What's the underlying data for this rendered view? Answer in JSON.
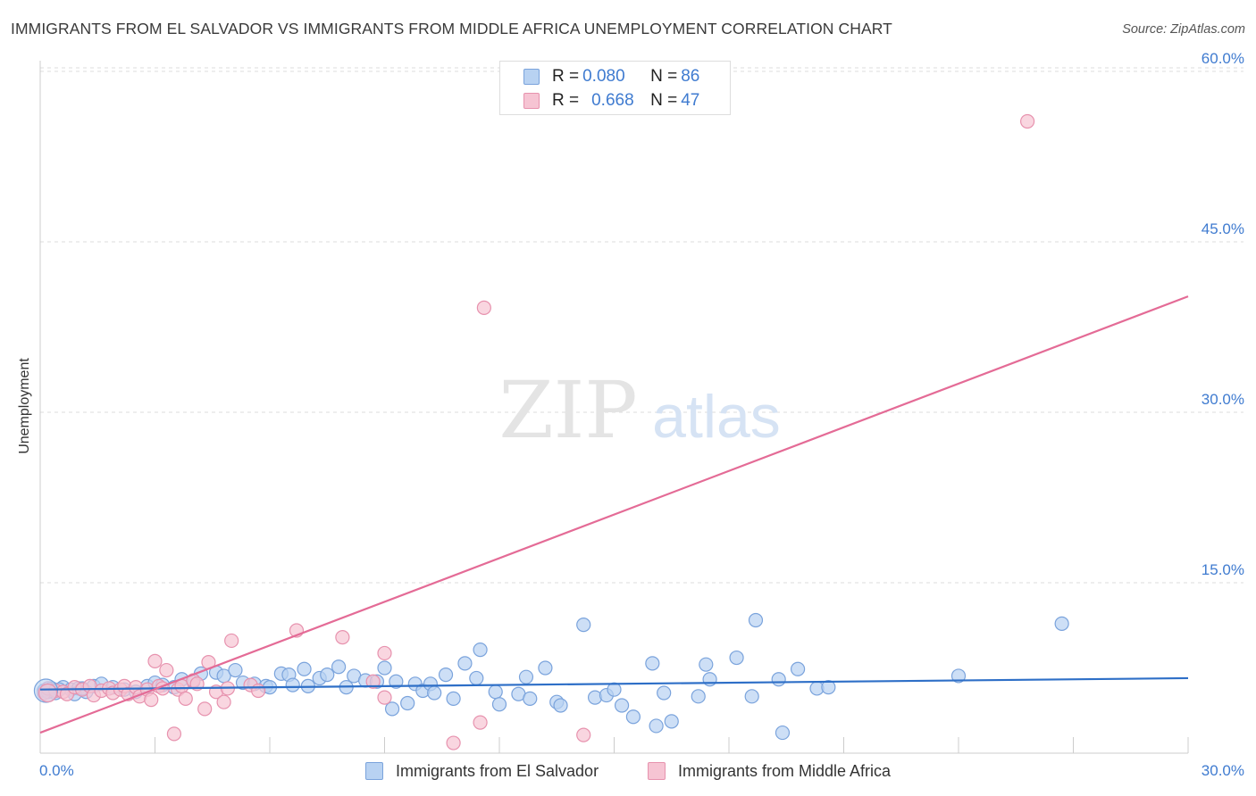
{
  "title": "IMMIGRANTS FROM EL SALVADOR VS IMMIGRANTS FROM MIDDLE AFRICA UNEMPLOYMENT CORRELATION CHART",
  "source": "Source: ZipAtlas.com",
  "watermark": {
    "zip": "ZIP",
    "atlas": "atlas"
  },
  "legend": {
    "series1": {
      "r_label": "R = ",
      "r_value": "0.080",
      "n_label": "N = ",
      "n_value": "86"
    },
    "series2": {
      "r_label": "R = ",
      "r_value": "0.668",
      "n_label": "N = ",
      "n_value": "47"
    }
  },
  "colors": {
    "blue_fill": "#b8d2f2",
    "blue_stroke": "#7aa3dc",
    "blue_line": "#2e6fc7",
    "pink_fill": "#f6c4d3",
    "pink_stroke": "#e792ae",
    "pink_line": "#e46b96",
    "axis_text": "#3f7bd0",
    "grid": "#dddddd"
  },
  "chart_data": {
    "type": "scatter",
    "title": "IMMIGRANTS FROM EL SALVADOR VS IMMIGRANTS FROM MIDDLE AFRICA UNEMPLOYMENT CORRELATION CHART",
    "xlabel": "",
    "ylabel": "Unemployment",
    "xlim": [
      0,
      30
    ],
    "ylim": [
      0,
      60
    ],
    "x_ticks": [
      0,
      3,
      6,
      9,
      12,
      15,
      18,
      21,
      24,
      27,
      30
    ],
    "x_tick_labels": {
      "0": "0.0%",
      "30": "30.0%"
    },
    "y_ticks": [
      15,
      30,
      45,
      60
    ],
    "y_tick_labels": [
      "15.0%",
      "30.0%",
      "45.0%",
      "60.0%"
    ],
    "grid": true,
    "legend": "bottom",
    "series": [
      {
        "name": "Immigrants from El Salvador",
        "color": "blue",
        "trend": {
          "x": [
            0,
            30
          ],
          "y": [
            5.6,
            6.6
          ]
        },
        "points": [
          [
            0.1,
            5.5
          ],
          [
            0.3,
            5.7
          ],
          [
            0.4,
            5.3
          ],
          [
            0.6,
            5.8
          ],
          [
            0.8,
            5.6
          ],
          [
            1.0,
            5.7
          ],
          [
            1.2,
            5.4
          ],
          [
            1.4,
            5.9
          ],
          [
            1.6,
            6.1
          ],
          [
            1.9,
            5.8
          ],
          [
            2.2,
            5.6
          ],
          [
            2.5,
            5.4
          ],
          [
            2.8,
            5.9
          ],
          [
            3.0,
            6.2
          ],
          [
            3.2,
            6.0
          ],
          [
            3.5,
            5.8
          ],
          [
            3.7,
            6.5
          ],
          [
            4.0,
            6.3
          ],
          [
            4.2,
            7.0
          ],
          [
            4.6,
            7.1
          ],
          [
            4.8,
            6.8
          ],
          [
            5.1,
            7.3
          ],
          [
            5.3,
            6.2
          ],
          [
            5.6,
            6.1
          ],
          [
            5.9,
            5.9
          ],
          [
            6.0,
            5.8
          ],
          [
            6.3,
            7.0
          ],
          [
            6.5,
            6.9
          ],
          [
            6.6,
            6.0
          ],
          [
            6.9,
            7.4
          ],
          [
            7.0,
            5.9
          ],
          [
            7.3,
            6.6
          ],
          [
            7.5,
            6.9
          ],
          [
            7.8,
            7.6
          ],
          [
            8.0,
            5.8
          ],
          [
            8.2,
            6.8
          ],
          [
            8.5,
            6.4
          ],
          [
            8.8,
            6.3
          ],
          [
            9.0,
            7.5
          ],
          [
            9.2,
            3.9
          ],
          [
            9.3,
            6.3
          ],
          [
            9.6,
            4.4
          ],
          [
            9.8,
            6.1
          ],
          [
            10.0,
            5.5
          ],
          [
            10.2,
            6.1
          ],
          [
            10.3,
            5.3
          ],
          [
            10.6,
            6.9
          ],
          [
            10.8,
            4.8
          ],
          [
            11.1,
            7.9
          ],
          [
            11.4,
            6.6
          ],
          [
            11.5,
            9.1
          ],
          [
            11.9,
            5.4
          ],
          [
            12.0,
            4.3
          ],
          [
            12.5,
            5.2
          ],
          [
            12.7,
            6.7
          ],
          [
            12.8,
            4.8
          ],
          [
            13.2,
            7.5
          ],
          [
            13.5,
            4.5
          ],
          [
            13.6,
            4.2
          ],
          [
            14.2,
            11.3
          ],
          [
            14.5,
            4.9
          ],
          [
            14.8,
            5.1
          ],
          [
            15.0,
            5.6
          ],
          [
            15.2,
            4.2
          ],
          [
            15.5,
            3.2
          ],
          [
            16.0,
            7.9
          ],
          [
            16.1,
            2.4
          ],
          [
            16.3,
            5.3
          ],
          [
            16.5,
            2.8
          ],
          [
            17.2,
            5.0
          ],
          [
            17.4,
            7.8
          ],
          [
            17.5,
            6.5
          ],
          [
            18.2,
            8.4
          ],
          [
            18.6,
            5.0
          ],
          [
            18.7,
            11.7
          ],
          [
            19.3,
            6.5
          ],
          [
            19.4,
            1.8
          ],
          [
            19.8,
            7.4
          ],
          [
            20.3,
            5.7
          ],
          [
            20.6,
            5.8
          ],
          [
            24.0,
            6.8
          ],
          [
            26.7,
            11.4
          ],
          [
            0.2,
            5.4
          ],
          [
            0.5,
            5.6
          ],
          [
            0.9,
            5.2
          ],
          [
            1.1,
            5.7
          ]
        ]
      },
      {
        "name": "Immigrants from Middle Africa",
        "color": "pink",
        "trend": {
          "x": [
            0,
            30
          ],
          "y": [
            1.8,
            40.2
          ]
        },
        "points": [
          [
            0.1,
            5.3
          ],
          [
            0.2,
            5.7
          ],
          [
            0.4,
            5.5
          ],
          [
            0.6,
            5.4
          ],
          [
            0.7,
            5.2
          ],
          [
            0.9,
            5.8
          ],
          [
            1.1,
            5.6
          ],
          [
            1.3,
            5.9
          ],
          [
            1.4,
            5.1
          ],
          [
            1.6,
            5.5
          ],
          [
            1.8,
            5.7
          ],
          [
            1.9,
            5.3
          ],
          [
            2.1,
            5.6
          ],
          [
            2.2,
            5.9
          ],
          [
            2.3,
            5.2
          ],
          [
            2.5,
            5.8
          ],
          [
            2.6,
            5.0
          ],
          [
            2.8,
            5.6
          ],
          [
            2.9,
            4.7
          ],
          [
            3.0,
            8.1
          ],
          [
            3.1,
            5.9
          ],
          [
            3.2,
            5.7
          ],
          [
            3.3,
            7.3
          ],
          [
            3.5,
            1.7
          ],
          [
            3.6,
            5.6
          ],
          [
            3.7,
            5.9
          ],
          [
            3.8,
            4.8
          ],
          [
            4.0,
            6.4
          ],
          [
            4.1,
            6.1
          ],
          [
            4.3,
            3.9
          ],
          [
            4.4,
            8.0
          ],
          [
            4.6,
            5.4
          ],
          [
            4.8,
            4.5
          ],
          [
            4.9,
            5.7
          ],
          [
            5.0,
            9.9
          ],
          [
            5.5,
            6.0
          ],
          [
            5.7,
            5.5
          ],
          [
            6.7,
            10.8
          ],
          [
            7.9,
            10.2
          ],
          [
            8.7,
            6.3
          ],
          [
            9.0,
            8.8
          ],
          [
            9.0,
            4.9
          ],
          [
            11.5,
            2.7
          ],
          [
            11.6,
            39.2
          ],
          [
            14.2,
            1.6
          ],
          [
            25.8,
            55.6
          ],
          [
            10.8,
            0.9
          ]
        ]
      }
    ]
  }
}
